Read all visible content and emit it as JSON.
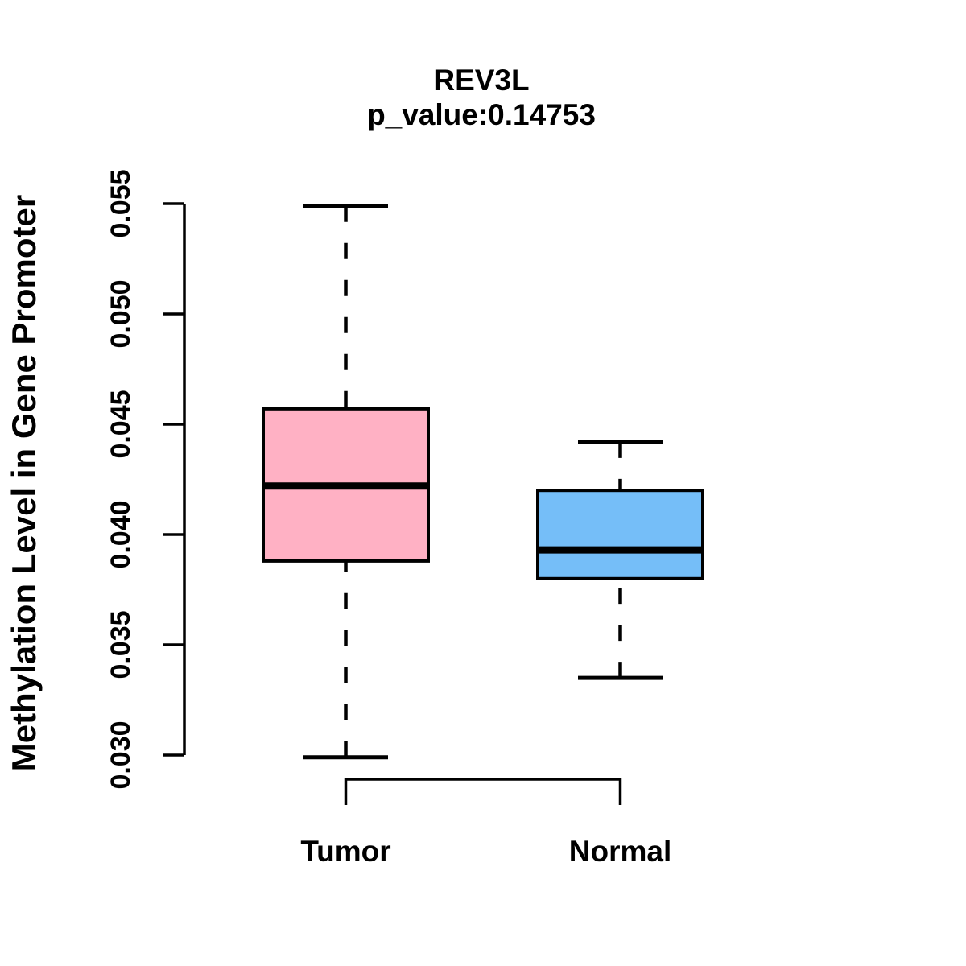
{
  "chart_data": {
    "type": "boxplot",
    "title": "REV3L",
    "subtitle": "p_value:0.14753",
    "ylabel": "Methylation Level in Gene Promoter",
    "xlabel": "",
    "ylim": [
      0.03,
      0.055
    ],
    "yticks": [
      0.03,
      0.035,
      0.04,
      0.045,
      0.05,
      0.055
    ],
    "ytick_decimals": 3,
    "grid": false,
    "legend": "none",
    "categories": [
      "Tumor",
      "Normal"
    ],
    "groups": [
      {
        "label": "Tumor",
        "fill_color": "#FFB1C4",
        "whisker_low": 0.0299,
        "q1": 0.0388,
        "median": 0.0422,
        "q3": 0.0457,
        "whisker_high": 0.0549
      },
      {
        "label": "Normal",
        "fill_color": "#75BEF8",
        "whisker_low": 0.0335,
        "q1": 0.038,
        "median": 0.0393,
        "q3": 0.042,
        "whisker_high": 0.0442
      }
    ],
    "colors": {
      "box_border": "#000000",
      "median_line": "#000000",
      "axis": "#000000",
      "background": "#FFFFFF"
    }
  }
}
